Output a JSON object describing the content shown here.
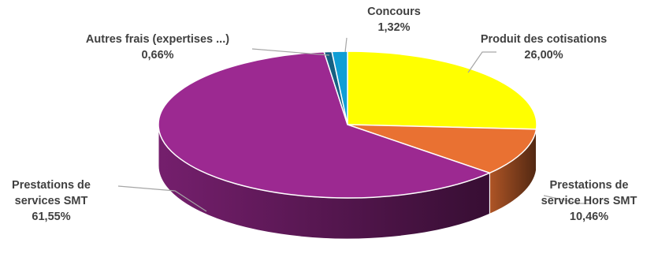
{
  "chart_data": {
    "type": "pie",
    "title": "",
    "slices": [
      {
        "label_lines": [
          "Produit des cotisations"
        ],
        "value_text": "26,00%",
        "value": 26.0,
        "color": "#FFFF00"
      },
      {
        "label_lines": [
          "Prestations de",
          "service Hors SMT"
        ],
        "value_text": "10,46%",
        "value": 10.46,
        "color": "#E97132"
      },
      {
        "label_lines": [
          "Prestations de",
          "services SMT"
        ],
        "value_text": "61,55%",
        "value": 61.55,
        "color": "#9C2991"
      },
      {
        "label_lines": [
          "Autres frais (expertises ...)"
        ],
        "value_text": "0,66%",
        "value": 0.66,
        "color": "#156082"
      },
      {
        "label_lines": [
          "Concours"
        ],
        "value_text": "1,32%",
        "value": 1.32,
        "color": "#0F9ED5"
      }
    ]
  }
}
